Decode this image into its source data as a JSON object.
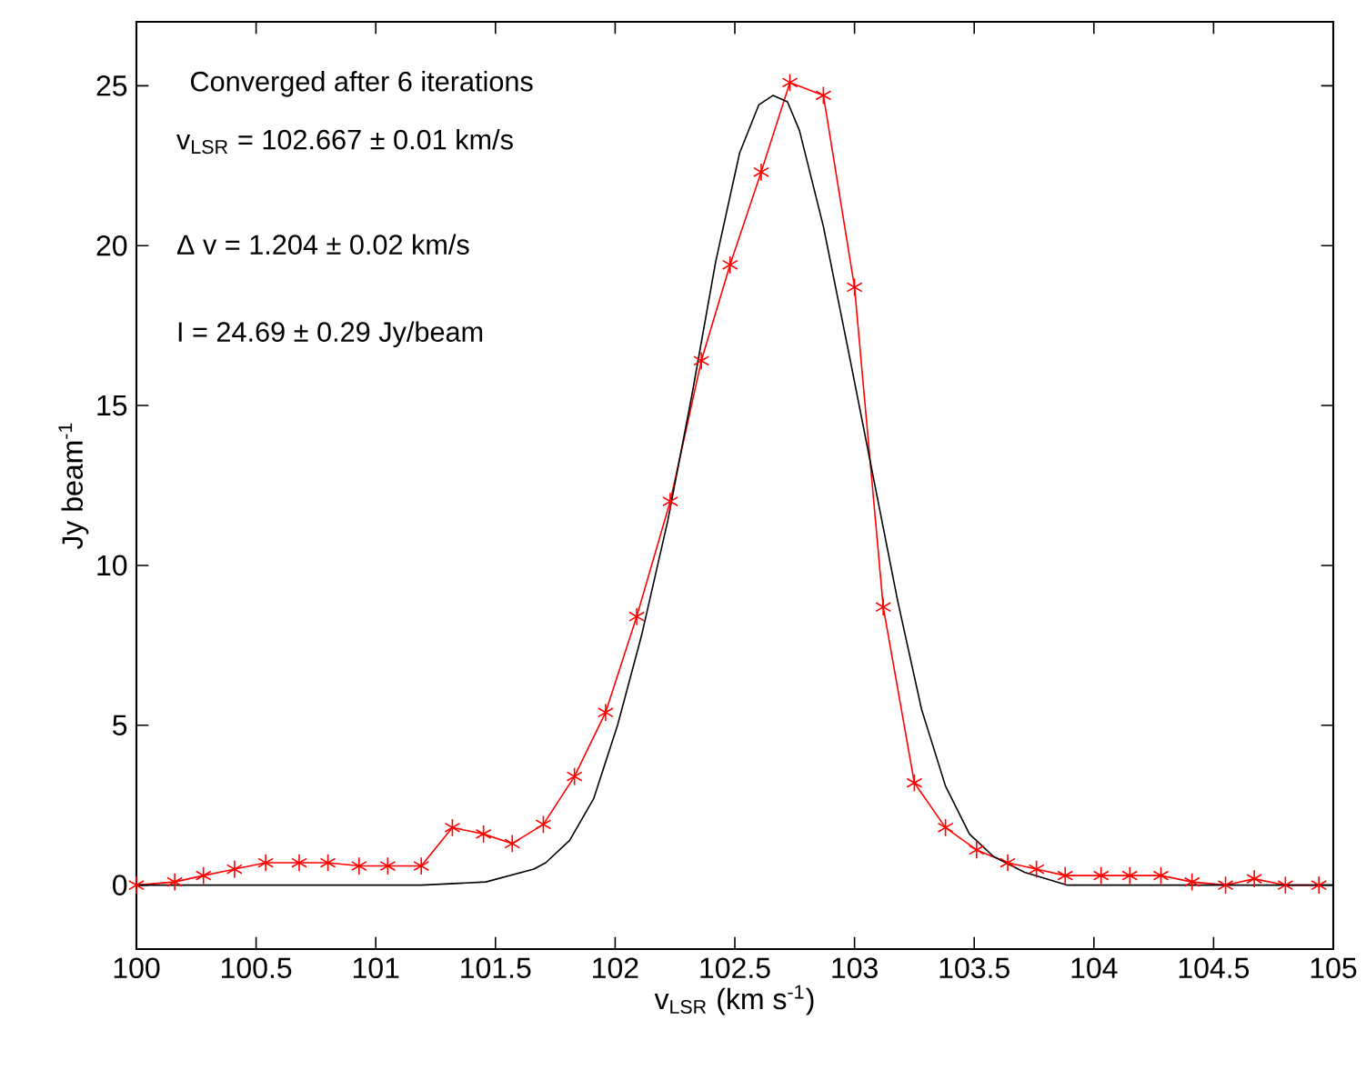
{
  "chart_data": {
    "type": "line",
    "xlabel": "v$_{LSR}$ (km s$^{-1}$)",
    "ylabel": "Jy beam$^{-1}$",
    "xlim": [
      100,
      105
    ],
    "ylim": [
      -2,
      27
    ],
    "xticks": [
      100,
      100.5,
      101,
      101.5,
      102,
      102.5,
      103,
      103.5,
      104,
      104.5,
      105
    ],
    "yticks": [
      0,
      5,
      10,
      15,
      20,
      25
    ],
    "annotations": [
      "Converged after 6 iterations",
      "v$_{LSR}$ = 102.667 ± 0.01 km/s",
      "Δ v = 1.204 ± 0.02 km/s",
      "I = 24.69 ± 0.29 Jy/beam"
    ],
    "grid": false,
    "series": [
      {
        "color": "#ff0000",
        "marker": "cross",
        "line_style": "solid",
        "x": [
          100.0,
          100.16,
          100.28,
          100.41,
          100.54,
          100.68,
          100.8,
          100.93,
          101.05,
          101.19,
          101.32,
          101.45,
          101.57,
          101.7,
          101.83,
          101.96,
          102.09,
          102.23,
          102.36,
          102.48,
          102.61,
          102.73,
          102.87,
          103.0,
          103.12,
          103.25,
          103.38,
          103.51,
          103.64,
          103.76,
          103.88,
          104.03,
          104.15,
          104.28,
          104.41,
          104.55,
          104.67,
          104.8,
          104.94
        ],
        "values": [
          0.0,
          0.1,
          0.3,
          0.5,
          0.7,
          0.7,
          0.7,
          0.6,
          0.6,
          0.6,
          1.8,
          1.6,
          1.3,
          1.9,
          3.4,
          5.4,
          8.4,
          12.0,
          16.4,
          19.4,
          22.3,
          25.1,
          24.7,
          18.7,
          8.7,
          3.2,
          1.8,
          1.1,
          0.7,
          0.5,
          0.3,
          0.3,
          0.3,
          0.3,
          0.1,
          0.0,
          0.2,
          0.0,
          0.0
        ]
      },
      {
        "color": "#000000",
        "marker": "none",
        "line_style": "solid",
        "x": [
          100,
          101.19,
          101.46,
          101.66,
          101.71,
          101.81,
          101.91,
          102.01,
          102.11,
          102.22,
          102.32,
          102.42,
          102.52,
          102.6,
          102.66,
          102.72,
          102.77,
          102.87,
          102.98,
          103.08,
          103.18,
          103.28,
          103.38,
          103.48,
          103.58,
          103.71,
          103.89,
          105
        ],
        "values": [
          0,
          0,
          0.1,
          0.5,
          0.7,
          1.4,
          2.7,
          5.0,
          7.8,
          11.4,
          15.3,
          19.5,
          22.9,
          24.4,
          24.7,
          24.5,
          23.6,
          20.6,
          16.5,
          12.7,
          8.9,
          5.5,
          3.1,
          1.6,
          0.9,
          0.4,
          0.0,
          0
        ]
      }
    ]
  }
}
